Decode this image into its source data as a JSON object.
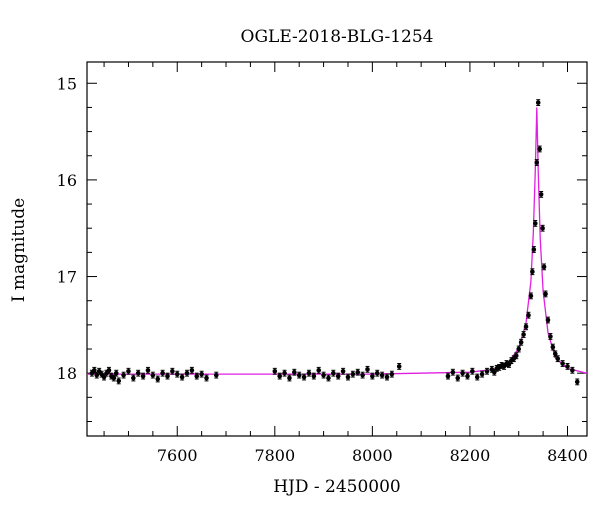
{
  "chart_data": {
    "type": "scatter",
    "title": "OGLE-2018-BLG-1254",
    "xlabel": "HJD - 2450000",
    "ylabel": "I magnitude",
    "xlim": [
      7415,
      8440
    ],
    "ylim": [
      18.65,
      14.78
    ],
    "y_inverted": true,
    "x_ticks": [
      7600,
      7800,
      8000,
      8200,
      8400
    ],
    "y_ticks": [
      15,
      16,
      17,
      18
    ],
    "grid": false,
    "model_color": "#e020e0",
    "point_color": "#000000",
    "series": [
      {
        "type": "scatter",
        "x": [
          7425,
          7430,
          7435,
          7440,
          7445,
          7450,
          7455,
          7460,
          7465,
          7470,
          7475,
          7480,
          7490,
          7500,
          7510,
          7520,
          7530,
          7540,
          7550,
          7560,
          7570,
          7580,
          7590,
          7600,
          7610,
          7620,
          7630,
          7640,
          7650,
          7660,
          7680,
          7800,
          7810,
          7820,
          7830,
          7840,
          7850,
          7860,
          7870,
          7880,
          7890,
          7900,
          7910,
          7920,
          7930,
          7940,
          7950,
          7960,
          7970,
          7980,
          7990,
          8000,
          8010,
          8020,
          8030,
          8040,
          8055,
          8155,
          8165,
          8175,
          8185,
          8195,
          8205,
          8215,
          8225,
          8235,
          8245,
          8250,
          8255,
          8260,
          8265,
          8270,
          8275,
          8280,
          8285,
          8290,
          8295,
          8300,
          8305,
          8310,
          8315,
          8320,
          8325,
          8328,
          8331,
          8334,
          8337,
          8340,
          8343,
          8346,
          8349,
          8352,
          8355,
          8360,
          8365,
          8370,
          8375,
          8380,
          8390,
          8400,
          8410,
          8420
        ],
        "y": [
          18.0,
          17.97,
          18.02,
          17.98,
          18.01,
          18.04,
          18.0,
          17.97,
          18.03,
          18.05,
          18.0,
          18.08,
          18.02,
          17.98,
          18.05,
          18.0,
          18.03,
          17.97,
          18.02,
          18.06,
          18.0,
          18.03,
          17.98,
          18.01,
          18.04,
          18.0,
          17.97,
          18.03,
          18.01,
          18.05,
          18.02,
          17.98,
          18.03,
          18.0,
          18.05,
          17.99,
          18.02,
          18.04,
          18.0,
          18.03,
          17.97,
          18.02,
          18.05,
          18.0,
          18.03,
          17.98,
          18.04,
          18.01,
          17.99,
          18.02,
          17.96,
          18.03,
          18.0,
          18.02,
          18.04,
          18.01,
          17.93,
          18.03,
          17.99,
          18.05,
          18.0,
          18.03,
          17.98,
          18.04,
          18.01,
          17.98,
          17.96,
          17.99,
          17.95,
          17.94,
          17.92,
          17.93,
          17.9,
          17.91,
          17.87,
          17.85,
          17.82,
          17.75,
          17.68,
          17.6,
          17.52,
          17.4,
          17.2,
          16.95,
          16.72,
          16.45,
          15.82,
          15.2,
          15.68,
          16.15,
          16.5,
          16.9,
          17.18,
          17.45,
          17.62,
          17.73,
          17.8,
          17.85,
          17.9,
          17.93,
          17.97,
          18.09
        ],
        "errors": 0.03
      },
      {
        "type": "line",
        "model": "point-lens microlensing fit",
        "baseline": 18.0,
        "t0": 8337,
        "peak": 15.25,
        "x": [
          7415,
          8000,
          8200,
          8250,
          8280,
          8300,
          8315,
          8325,
          8330,
          8334,
          8337,
          8340,
          8344,
          8350,
          8360,
          8375,
          8400,
          8440
        ],
        "y": [
          18.01,
          18.01,
          17.99,
          17.96,
          17.88,
          17.74,
          17.48,
          17.05,
          16.55,
          15.9,
          15.25,
          15.9,
          16.6,
          17.15,
          17.58,
          17.84,
          17.95,
          18.0
        ]
      }
    ]
  }
}
